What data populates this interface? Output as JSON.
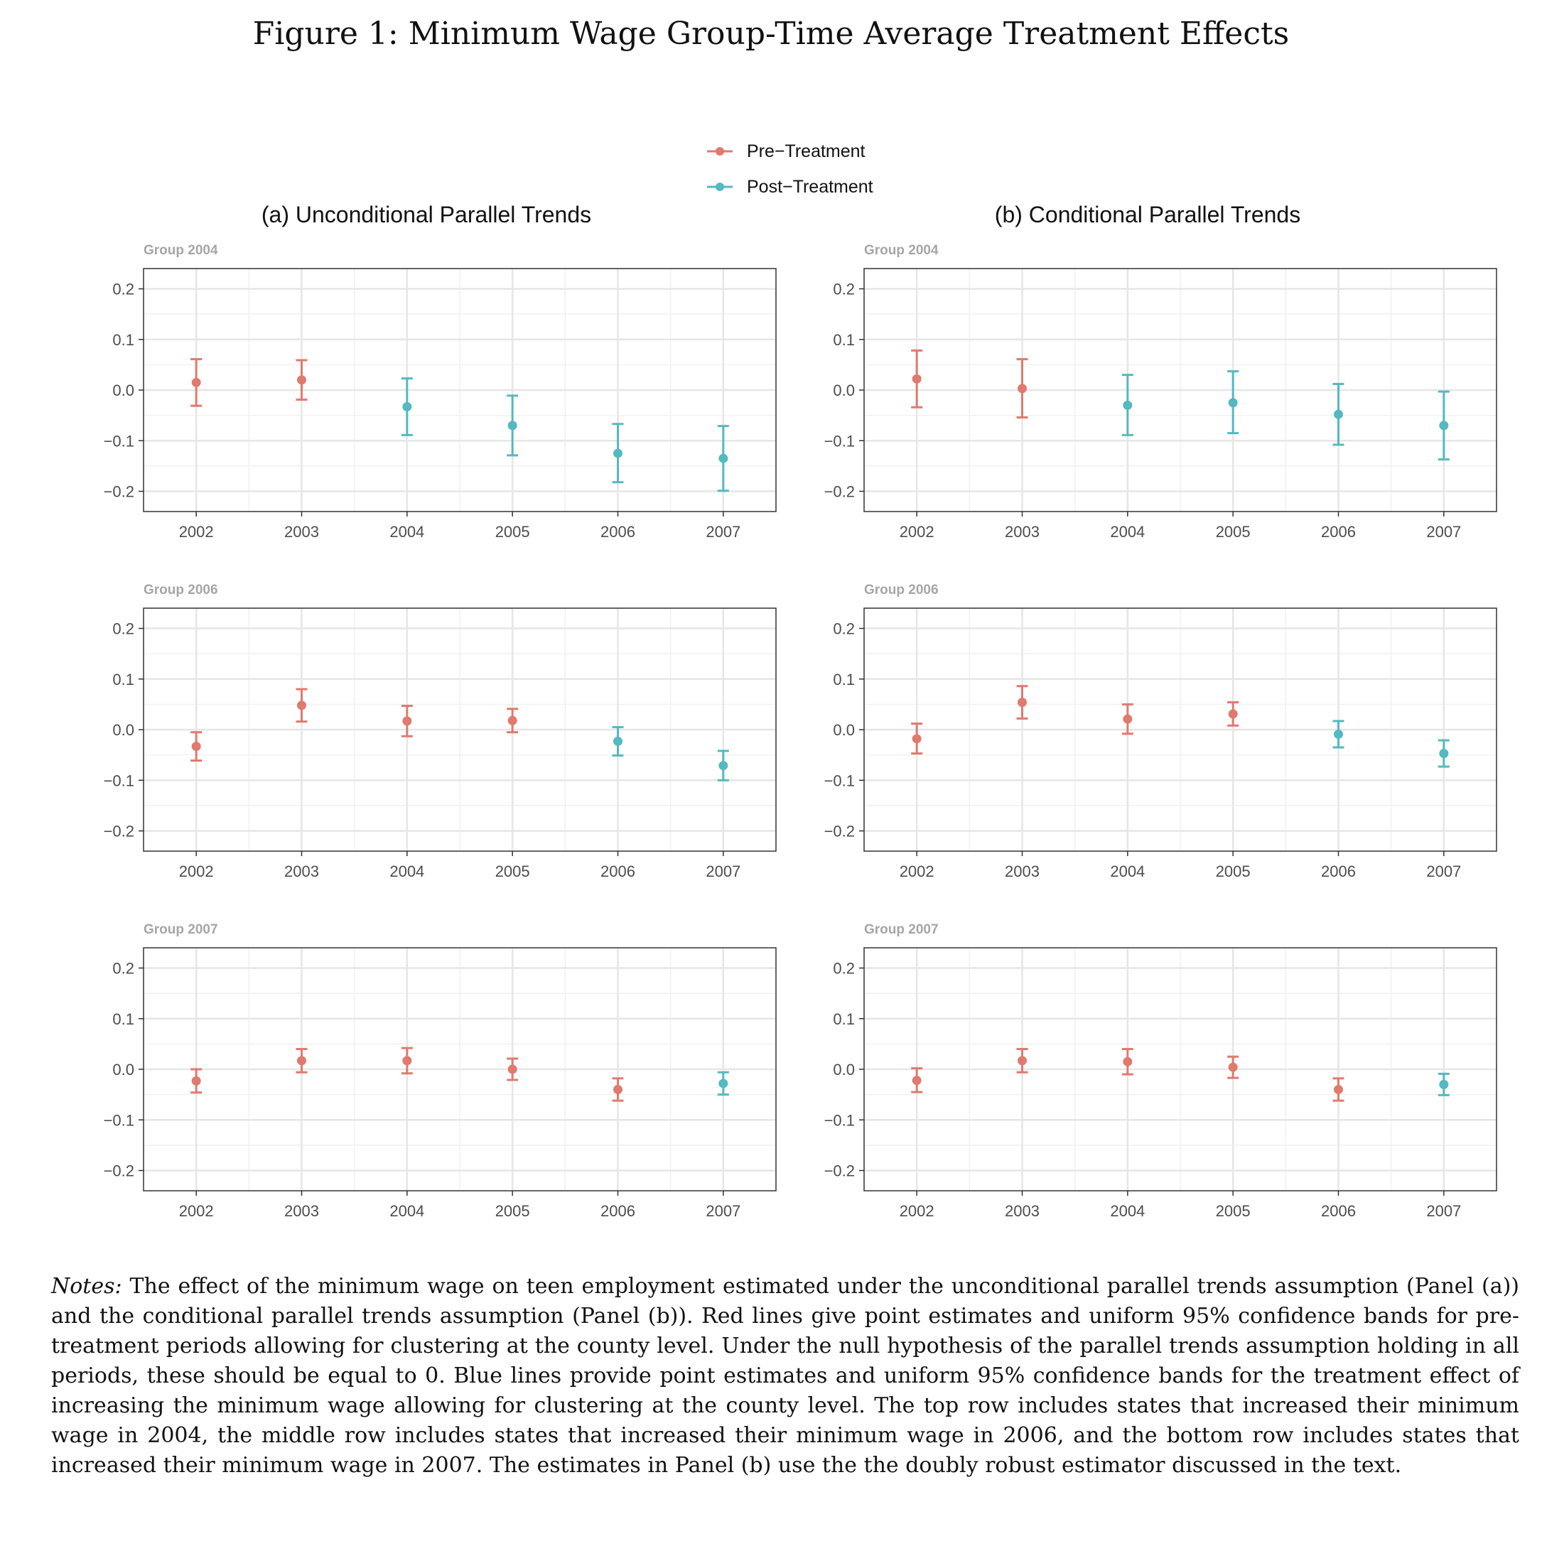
{
  "figure_title": "Figure 1: Minimum Wage Group-Time Average Treatment Effects",
  "legend": [
    {
      "label": "Pre−Treatment",
      "color": "#E07A6E"
    },
    {
      "label": "Post−Treatment",
      "color": "#54B9C0"
    }
  ],
  "panel_titles": [
    "(a) Unconditional Parallel Trends",
    "(b) Conditional Parallel Trends"
  ],
  "notes": {
    "label": "Notes:",
    "text": " The effect of the minimum wage on teen employment estimated under the unconditional parallel trends assumption (Panel (a)) and the conditional parallel trends assumption (Panel (b)). Red lines give point estimates and uniform 95% confidence bands for pre-treatment periods allowing for clustering at the county level. Under the null hypothesis of the parallel trends assumption holding in all periods, these should be equal to 0. Blue lines provide point estimates and uniform 95% confidence bands for the treatment effect of increasing the minimum wage allowing for clustering at the county level. The top row includes states that increased their minimum wage in 2004, the middle row includes states that increased their minimum wage in 2006, and the bottom row includes states that increased their minimum wage in 2007. The estimates in Panel (b) use the the doubly robust estimator discussed in the text."
  },
  "chart_data": [
    {
      "type": "scatter",
      "panel": "(a) Unconditional Parallel Trends",
      "title": "Group 2004",
      "x": [
        "2002",
        "2003",
        "2004",
        "2005",
        "2006",
        "2007"
      ],
      "y": [
        0.015,
        0.02,
        -0.033,
        -0.07,
        -0.125,
        -0.135
      ],
      "lower": [
        -0.031,
        -0.019,
        -0.089,
        -0.129,
        -0.182,
        -0.199
      ],
      "upper": [
        0.061,
        0.059,
        0.023,
        -0.011,
        -0.067,
        -0.071
      ],
      "period": [
        "pre",
        "pre",
        "post",
        "post",
        "post",
        "post"
      ],
      "yticks": [
        "0.2",
        "0.1",
        "0.0",
        "−0.1",
        "−0.2"
      ],
      "ylim": [
        -0.24,
        0.24
      ],
      "grid": true
    },
    {
      "type": "scatter",
      "panel": "(b) Conditional Parallel Trends",
      "title": "Group 2004",
      "x": [
        "2002",
        "2003",
        "2004",
        "2005",
        "2006",
        "2007"
      ],
      "y": [
        0.022,
        0.003,
        -0.03,
        -0.025,
        -0.048,
        -0.07
      ],
      "lower": [
        -0.034,
        -0.054,
        -0.089,
        -0.085,
        -0.108,
        -0.137
      ],
      "upper": [
        0.078,
        0.061,
        0.03,
        0.037,
        0.012,
        -0.003
      ],
      "period": [
        "pre",
        "pre",
        "post",
        "post",
        "post",
        "post"
      ],
      "yticks": [
        "0.2",
        "0.1",
        "0.0",
        "−0.1",
        "−0.2"
      ],
      "ylim": [
        -0.24,
        0.24
      ],
      "grid": true
    },
    {
      "type": "scatter",
      "panel": "(a) Unconditional Parallel Trends",
      "title": "Group 2006",
      "x": [
        "2002",
        "2003",
        "2004",
        "2005",
        "2006",
        "2007"
      ],
      "y": [
        -0.033,
        0.048,
        0.017,
        0.018,
        -0.023,
        -0.071
      ],
      "lower": [
        -0.061,
        0.016,
        -0.013,
        -0.005,
        -0.051,
        -0.1
      ],
      "upper": [
        -0.005,
        0.08,
        0.047,
        0.041,
        0.005,
        -0.042
      ],
      "period": [
        "pre",
        "pre",
        "pre",
        "pre",
        "post",
        "post"
      ],
      "yticks": [
        "0.2",
        "0.1",
        "0.0",
        "−0.1",
        "−0.2"
      ],
      "ylim": [
        -0.24,
        0.24
      ],
      "grid": true
    },
    {
      "type": "scatter",
      "panel": "(b) Conditional Parallel Trends",
      "title": "Group 2006",
      "x": [
        "2002",
        "2003",
        "2004",
        "2005",
        "2006",
        "2007"
      ],
      "y": [
        -0.018,
        0.054,
        0.021,
        0.031,
        -0.009,
        -0.047
      ],
      "lower": [
        -0.047,
        0.022,
        -0.008,
        0.008,
        -0.035,
        -0.073
      ],
      "upper": [
        0.012,
        0.086,
        0.05,
        0.054,
        0.017,
        -0.021
      ],
      "period": [
        "pre",
        "pre",
        "pre",
        "pre",
        "post",
        "post"
      ],
      "yticks": [
        "0.2",
        "0.1",
        "0.0",
        "−0.1",
        "−0.2"
      ],
      "ylim": [
        -0.24,
        0.24
      ],
      "grid": true
    },
    {
      "type": "scatter",
      "panel": "(a) Unconditional Parallel Trends",
      "title": "Group 2007",
      "x": [
        "2002",
        "2003",
        "2004",
        "2005",
        "2006",
        "2007"
      ],
      "y": [
        -0.023,
        0.017,
        0.017,
        0.0,
        -0.04,
        -0.028
      ],
      "lower": [
        -0.046,
        -0.006,
        -0.008,
        -0.021,
        -0.062,
        -0.05
      ],
      "upper": [
        0.0,
        0.04,
        0.042,
        0.021,
        -0.018,
        -0.006
      ],
      "period": [
        "pre",
        "pre",
        "pre",
        "pre",
        "pre",
        "post"
      ],
      "yticks": [
        "0.2",
        "0.1",
        "0.0",
        "−0.1",
        "−0.2"
      ],
      "ylim": [
        -0.24,
        0.24
      ],
      "grid": true
    },
    {
      "type": "scatter",
      "panel": "(b) Conditional Parallel Trends",
      "title": "Group 2007",
      "x": [
        "2002",
        "2003",
        "2004",
        "2005",
        "2006",
        "2007"
      ],
      "y": [
        -0.022,
        0.017,
        0.015,
        0.004,
        -0.04,
        -0.03
      ],
      "lower": [
        -0.045,
        -0.006,
        -0.01,
        -0.017,
        -0.062,
        -0.051
      ],
      "upper": [
        0.002,
        0.04,
        0.04,
        0.025,
        -0.018,
        -0.009
      ],
      "period": [
        "pre",
        "pre",
        "pre",
        "pre",
        "pre",
        "post"
      ],
      "yticks": [
        "0.2",
        "0.1",
        "0.0",
        "−0.1",
        "−0.2"
      ],
      "ylim": [
        -0.24,
        0.24
      ],
      "grid": true
    }
  ]
}
